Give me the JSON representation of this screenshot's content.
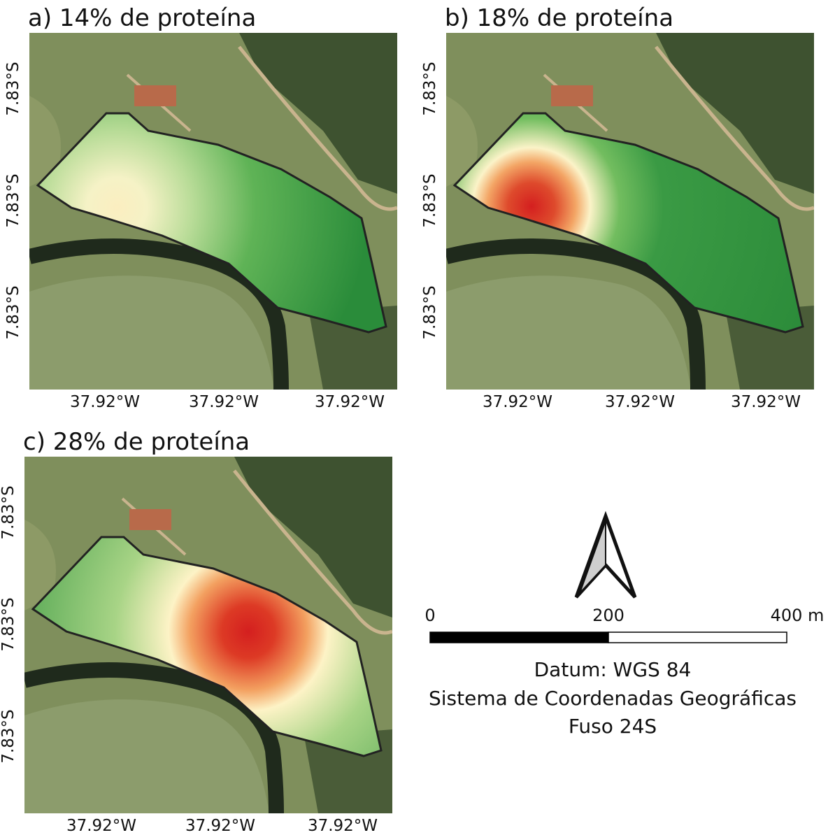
{
  "panels": [
    {
      "title": "a) 14% de proteína",
      "lat_labels": [
        "7.83°S",
        "7.83°S",
        "7.83°S"
      ],
      "lon_labels": [
        "37.92°W",
        "37.92°W",
        "37.92°W"
      ]
    },
    {
      "title": "b) 18% de proteína",
      "lat_labels": [
        "7.83°S",
        "7.83°S",
        "7.83°S"
      ],
      "lon_labels": [
        "37.92°W",
        "37.92°W",
        "37.92°W"
      ]
    },
    {
      "title": "c) 28% de proteína",
      "lat_labels": [
        "7.83°S",
        "7.83°S",
        "7.83°S"
      ],
      "lon_labels": [
        "37.92°W",
        "37.92°W",
        "37.92°W"
      ]
    }
  ],
  "scale_bar": {
    "labels": [
      "0",
      "200",
      "400 m"
    ]
  },
  "datum": [
    "Datum: WGS 84",
    "Sistema de Coordenadas Geográficas",
    "Fuso 24S"
  ]
}
